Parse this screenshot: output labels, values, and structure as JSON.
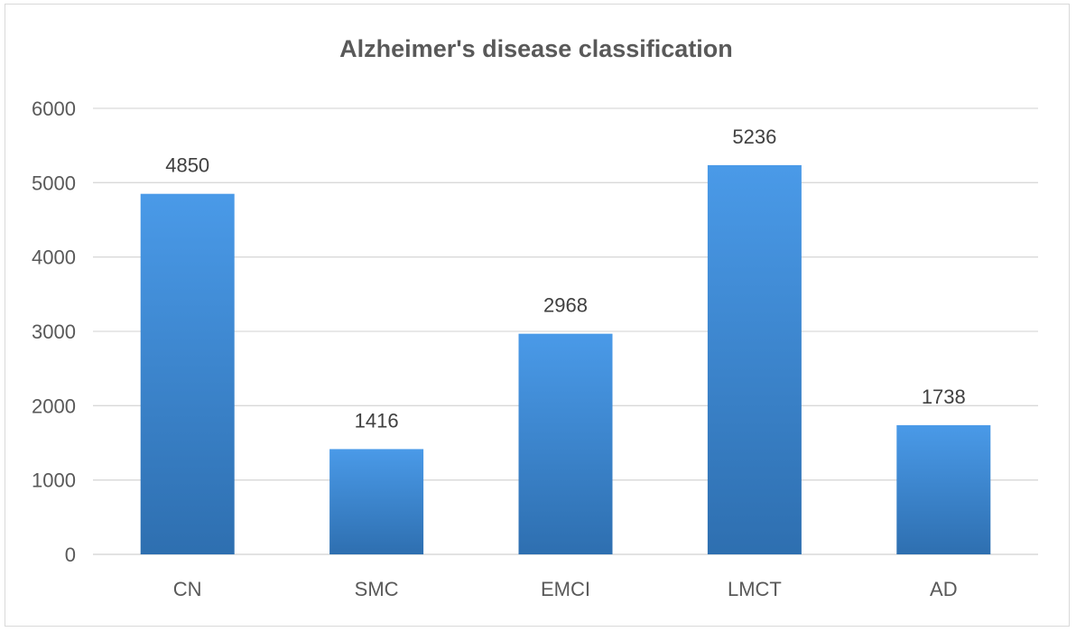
{
  "chart_data": {
    "type": "bar",
    "title": "Alzheimer's disease classification",
    "xlabel": "",
    "ylabel": "",
    "categories": [
      "CN",
      "SMC",
      "EMCI",
      "LMCT",
      "AD"
    ],
    "values": [
      4850,
      1416,
      2968,
      5236,
      1738
    ],
    "ylim": [
      0,
      6000
    ],
    "yticks": [
      0,
      1000,
      2000,
      3000,
      4000,
      5000,
      6000
    ],
    "grid": true,
    "legend": "none",
    "data_labels": true,
    "colors": {
      "bar_top": "#4a9ae8",
      "bar_bottom": "#2e6fb0"
    }
  }
}
